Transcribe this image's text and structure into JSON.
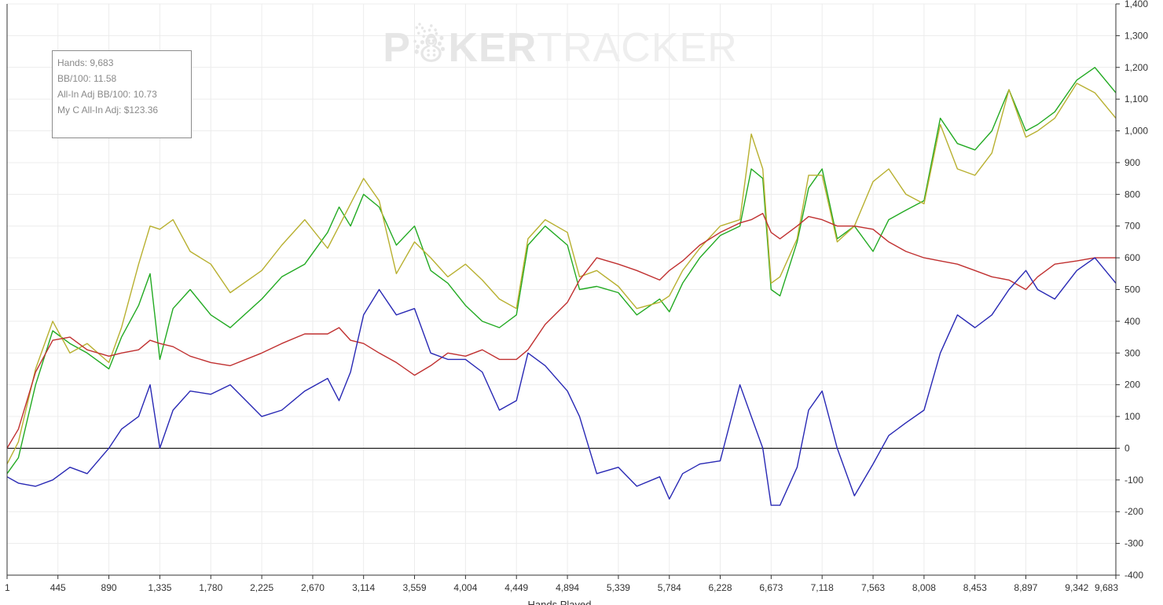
{
  "stats": {
    "hands": "Hands: 9,683",
    "bb100": "BB/100: 11.58",
    "allin_adj_bb100": "All-In Adj BB/100: 10.73",
    "my_c_allin_adj": "My C All-In Adj: $123.36"
  },
  "watermark": {
    "bold": "P☃KER",
    "light": "TRACKER"
  },
  "colors": {
    "green": "#22aa22",
    "yellow": "#b8b030",
    "red": "#c03030",
    "blue": "#2828b4",
    "zero_line": "#000000",
    "grid": "#ececec"
  },
  "chart_data": {
    "type": "line",
    "title": "",
    "xlabel": "Hands Played",
    "ylabel": "",
    "xlim": [
      1,
      9683
    ],
    "ylim": [
      -400,
      1400
    ],
    "x_ticks": [
      1,
      445,
      890,
      1335,
      1780,
      2225,
      2670,
      3114,
      3559,
      4004,
      4449,
      4894,
      5339,
      5784,
      6228,
      6673,
      7118,
      7563,
      8008,
      8453,
      8897,
      9342,
      9683
    ],
    "x_tick_labels": [
      "1",
      "445",
      "890",
      "1,335",
      "1,780",
      "2,225",
      "2,670",
      "3,114",
      "3,559",
      "4,004",
      "4,449",
      "4,894",
      "5,339",
      "5,784",
      "6,228",
      "6,673",
      "7,118",
      "7,563",
      "8,008",
      "8,453",
      "8,897",
      "9,342",
      "9,683"
    ],
    "y_ticks": [
      -400,
      -300,
      -200,
      -100,
      0,
      100,
      200,
      300,
      400,
      500,
      600,
      700,
      800,
      900,
      1000,
      1100,
      1200,
      1300,
      1400
    ],
    "y_tick_labels": [
      "-400",
      "-300",
      "-200",
      "-100",
      "0",
      "100",
      "200",
      "300",
      "400",
      "500",
      "600",
      "700",
      "800",
      "900",
      "1,000",
      "1,100",
      "1,200",
      "1,300",
      "1,400"
    ],
    "grid": true,
    "series": [
      {
        "color": "green",
        "x": [
          1,
          100,
          250,
          400,
          550,
          700,
          890,
          1000,
          1150,
          1250,
          1335,
          1450,
          1600,
          1780,
          1950,
          2225,
          2400,
          2600,
          2800,
          2900,
          3000,
          3114,
          3250,
          3400,
          3559,
          3700,
          3850,
          4004,
          4150,
          4300,
          4449,
          4550,
          4700,
          4894,
          5000,
          5150,
          5339,
          5500,
          5700,
          5784,
          5900,
          6050,
          6228,
          6400,
          6500,
          6600,
          6673,
          6750,
          6900,
          7000,
          7118,
          7250,
          7400,
          7563,
          7700,
          7850,
          8008,
          8150,
          8300,
          8453,
          8600,
          8750,
          8897,
          9000,
          9150,
          9342,
          9500,
          9683
        ],
        "y": [
          -80,
          -30,
          200,
          370,
          330,
          300,
          250,
          350,
          450,
          550,
          280,
          440,
          500,
          420,
          380,
          470,
          540,
          580,
          680,
          760,
          700,
          800,
          760,
          640,
          700,
          560,
          520,
          450,
          400,
          380,
          420,
          640,
          700,
          640,
          500,
          510,
          490,
          420,
          470,
          430,
          520,
          600,
          670,
          700,
          880,
          850,
          500,
          480,
          650,
          820,
          880,
          660,
          700,
          620,
          720,
          750,
          780,
          1040,
          960,
          940,
          1000,
          1130,
          1000,
          1020,
          1060,
          1160,
          1200,
          1120
        ]
      },
      {
        "color": "yellow",
        "x": [
          1,
          100,
          250,
          400,
          550,
          700,
          890,
          1000,
          1150,
          1250,
          1335,
          1450,
          1600,
          1780,
          1950,
          2225,
          2400,
          2600,
          2800,
          2900,
          3000,
          3114,
          3250,
          3400,
          3559,
          3700,
          3850,
          4004,
          4150,
          4300,
          4449,
          4550,
          4700,
          4894,
          5000,
          5150,
          5339,
          5500,
          5700,
          5784,
          5900,
          6050,
          6228,
          6400,
          6500,
          6600,
          6673,
          6750,
          6900,
          7000,
          7118,
          7250,
          7400,
          7563,
          7700,
          7850,
          8008,
          8150,
          8300,
          8453,
          8600,
          8750,
          8897,
          9000,
          9150,
          9342,
          9500,
          9683
        ],
        "y": [
          -50,
          20,
          250,
          400,
          300,
          330,
          270,
          380,
          580,
          700,
          690,
          720,
          620,
          580,
          490,
          560,
          640,
          720,
          630,
          700,
          770,
          850,
          780,
          550,
          650,
          600,
          540,
          580,
          530,
          470,
          440,
          660,
          720,
          680,
          540,
          560,
          510,
          440,
          460,
          480,
          560,
          630,
          700,
          720,
          990,
          880,
          520,
          540,
          660,
          860,
          860,
          650,
          700,
          840,
          880,
          800,
          770,
          1020,
          880,
          860,
          930,
          1130,
          980,
          1000,
          1040,
          1150,
          1120,
          1040
        ]
      },
      {
        "color": "red",
        "x": [
          1,
          100,
          250,
          400,
          550,
          700,
          890,
          1000,
          1150,
          1250,
          1335,
          1450,
          1600,
          1780,
          1950,
          2225,
          2400,
          2600,
          2800,
          2900,
          3000,
          3114,
          3250,
          3400,
          3559,
          3700,
          3850,
          4004,
          4150,
          4300,
          4449,
          4550,
          4700,
          4894,
          5000,
          5150,
          5339,
          5500,
          5700,
          5784,
          5900,
          6050,
          6228,
          6400,
          6500,
          6600,
          6673,
          6750,
          6900,
          7000,
          7118,
          7250,
          7400,
          7563,
          7700,
          7850,
          8008,
          8150,
          8300,
          8453,
          8600,
          8750,
          8897,
          9000,
          9150,
          9342,
          9500,
          9683
        ],
        "y": [
          0,
          60,
          240,
          340,
          350,
          310,
          290,
          300,
          310,
          340,
          330,
          320,
          290,
          270,
          260,
          300,
          330,
          360,
          360,
          380,
          340,
          330,
          300,
          270,
          230,
          260,
          300,
          290,
          310,
          280,
          280,
          310,
          390,
          460,
          530,
          600,
          580,
          560,
          530,
          560,
          590,
          640,
          680,
          710,
          720,
          740,
          680,
          660,
          700,
          730,
          720,
          700,
          700,
          690,
          650,
          620,
          600,
          590,
          580,
          560,
          540,
          530,
          500,
          540,
          580,
          590,
          600,
          600
        ]
      },
      {
        "color": "blue",
        "x": [
          1,
          100,
          250,
          400,
          550,
          700,
          890,
          1000,
          1150,
          1250,
          1335,
          1450,
          1600,
          1780,
          1950,
          2225,
          2400,
          2600,
          2800,
          2900,
          3000,
          3114,
          3250,
          3400,
          3559,
          3700,
          3850,
          4004,
          4150,
          4300,
          4449,
          4550,
          4700,
          4894,
          5000,
          5150,
          5339,
          5500,
          5700,
          5784,
          5900,
          6050,
          6228,
          6400,
          6500,
          6600,
          6673,
          6750,
          6900,
          7000,
          7118,
          7250,
          7400,
          7563,
          7700,
          7850,
          8008,
          8150,
          8300,
          8453,
          8600,
          8750,
          8897,
          9000,
          9150,
          9342,
          9500,
          9683
        ],
        "y": [
          -90,
          -110,
          -120,
          -100,
          -60,
          -80,
          0,
          60,
          100,
          200,
          0,
          120,
          180,
          170,
          200,
          100,
          120,
          180,
          220,
          150,
          240,
          420,
          500,
          420,
          440,
          300,
          280,
          280,
          240,
          120,
          150,
          300,
          260,
          180,
          100,
          -80,
          -60,
          -120,
          -90,
          -160,
          -80,
          -50,
          -40,
          200,
          100,
          0,
          -180,
          -180,
          -60,
          120,
          180,
          0,
          -150,
          -50,
          40,
          80,
          120,
          300,
          420,
          380,
          420,
          500,
          560,
          500,
          470,
          560,
          600,
          520
        ]
      }
    ]
  }
}
